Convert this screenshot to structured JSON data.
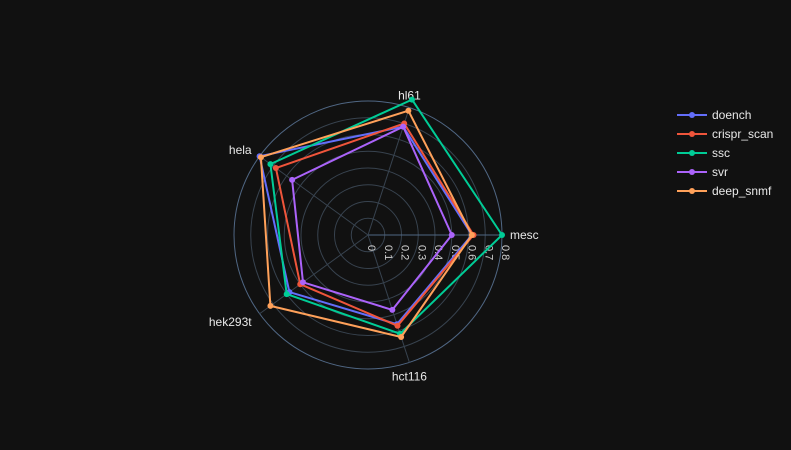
{
  "chart_data": {
    "type": "radar",
    "axes": [
      "mesc",
      "hl61",
      "hela",
      "hek293t",
      "hct116"
    ],
    "radial_range": [
      0,
      0.8
    ],
    "radial_ticks": [
      "0",
      "0.1",
      "0.2",
      "0.3",
      "0.4",
      "0.5",
      "0.6",
      "0.7",
      "0.8"
    ],
    "legend_position": "top-right",
    "series": [
      {
        "name": "doench",
        "color": "#636efa",
        "values": [
          0.62,
          0.68,
          0.8,
          0.58,
          0.56
        ]
      },
      {
        "name": "crispr_scan",
        "color": "#ef553b",
        "values": [
          0.63,
          0.7,
          0.68,
          0.5,
          0.57
        ]
      },
      {
        "name": "ssc",
        "color": "#00cc96",
        "values": [
          0.8,
          0.85,
          0.72,
          0.6,
          0.62
        ]
      },
      {
        "name": "svr",
        "color": "#ab63fa",
        "values": [
          0.5,
          0.68,
          0.56,
          0.48,
          0.47
        ]
      },
      {
        "name": "deep_snmf",
        "color": "#ffa15a",
        "values": [
          0.62,
          0.78,
          0.79,
          0.72,
          0.64
        ]
      }
    ]
  }
}
